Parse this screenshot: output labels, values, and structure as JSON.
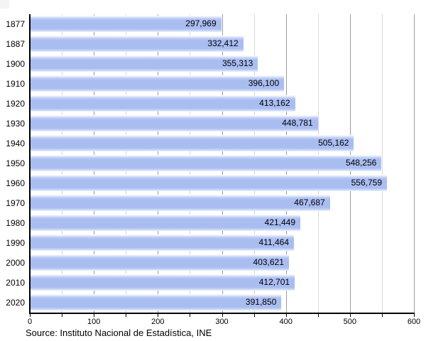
{
  "chart_data": {
    "type": "bar",
    "orientation": "horizontal",
    "title": "",
    "categories": [
      "1877",
      "1887",
      "1900",
      "1910",
      "1920",
      "1930",
      "1940",
      "1950",
      "1960",
      "1970",
      "1980",
      "1990",
      "2000",
      "2010",
      "2020"
    ],
    "values": [
      297969,
      332412,
      355313,
      396100,
      413162,
      448781,
      505162,
      548256,
      556759,
      467687,
      421449,
      411464,
      403621,
      412701,
      391850
    ],
    "value_labels": [
      "297,969",
      "332,412",
      "355,313",
      "396,100",
      "413,162",
      "448,781",
      "505,162",
      "548,256",
      "556,759",
      "467,687",
      "421,449",
      "411,464",
      "403,621",
      "412,701",
      "391,850"
    ],
    "x_ticks": [
      "0",
      "100",
      "200",
      "300",
      "400",
      "500",
      "600"
    ],
    "xlim": [
      0,
      600000
    ],
    "x_tick_step": 100000,
    "x_minor_tick_step": 50000,
    "grid": {
      "vertical": true,
      "minor_step": 50000,
      "major_step": 100000,
      "minor_color": "#d8d8d8",
      "major_color": "#9c9c9c"
    },
    "bar_color": "#a9bdf1",
    "axis_color": "#000000",
    "legend": "none",
    "source": "Source: Instituto Nacional de Estadística, INE"
  }
}
